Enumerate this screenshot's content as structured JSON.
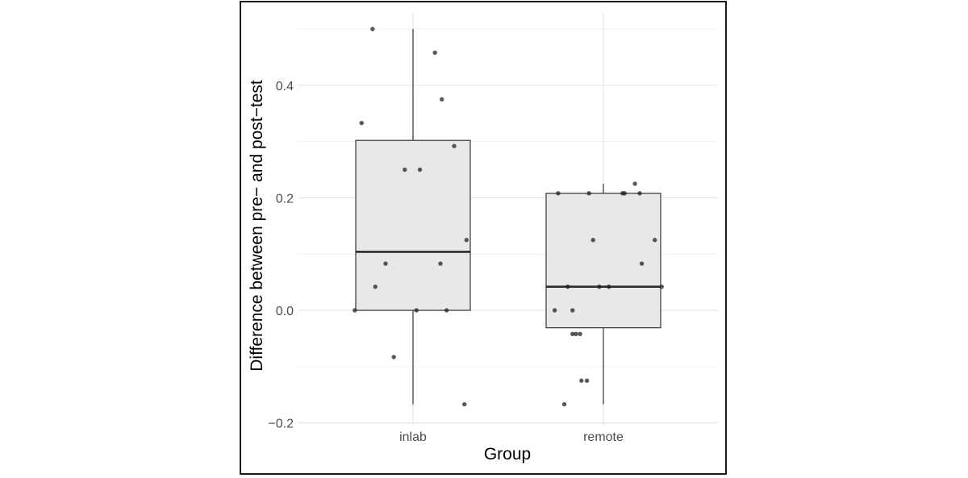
{
  "chart_data": {
    "type": "box",
    "xlabel": "Group",
    "ylabel": "Difference between pre− and post−test",
    "ylim": [
      -0.2,
      0.5
    ],
    "y_ticks": [
      -0.2,
      0.0,
      0.2,
      0.4
    ],
    "y_tick_labels": [
      "−0.2",
      "0.0",
      "0.2",
      "0.4"
    ],
    "grid": true,
    "categories": [
      "inlab",
      "remote"
    ],
    "boxes": [
      {
        "group": "inlab",
        "whisker_low": -0.167,
        "q1": 0.0,
        "median": 0.104,
        "q3": 0.302,
        "whisker_high": 0.5,
        "points": [
          {
            "jitter": -0.59,
            "y": 0.5
          },
          {
            "jitter": -0.75,
            "y": 0.333
          },
          {
            "jitter": 0.32,
            "y": 0.458
          },
          {
            "jitter": 0.42,
            "y": 0.375
          },
          {
            "jitter": 0.6,
            "y": 0.292
          },
          {
            "jitter": -0.12,
            "y": 0.25
          },
          {
            "jitter": 0.1,
            "y": 0.25
          },
          {
            "jitter": 0.78,
            "y": 0.125
          },
          {
            "jitter": -0.4,
            "y": 0.083
          },
          {
            "jitter": 0.4,
            "y": 0.083
          },
          {
            "jitter": -0.55,
            "y": 0.042
          },
          {
            "jitter": -0.85,
            "y": 0.0
          },
          {
            "jitter": 0.05,
            "y": 0.0
          },
          {
            "jitter": 0.49,
            "y": 0.0
          },
          {
            "jitter": -0.28,
            "y": -0.083
          },
          {
            "jitter": 0.75,
            "y": -0.167
          }
        ]
      },
      {
        "group": "remote",
        "whisker_low": -0.167,
        "q1": -0.031,
        "median": 0.042,
        "q3": 0.208,
        "whisker_high": 0.225,
        "points": [
          {
            "jitter": -0.66,
            "y": 0.208
          },
          {
            "jitter": -0.21,
            "y": 0.208
          },
          {
            "jitter": 0.28,
            "y": 0.208
          },
          {
            "jitter": 0.31,
            "y": 0.208
          },
          {
            "jitter": 0.53,
            "y": 0.208
          },
          {
            "jitter": 0.46,
            "y": 0.225
          },
          {
            "jitter": -0.15,
            "y": 0.125
          },
          {
            "jitter": 0.75,
            "y": 0.125
          },
          {
            "jitter": 0.56,
            "y": 0.083
          },
          {
            "jitter": -0.52,
            "y": 0.042
          },
          {
            "jitter": -0.06,
            "y": 0.042
          },
          {
            "jitter": 0.08,
            "y": 0.042
          },
          {
            "jitter": 0.85,
            "y": 0.042
          },
          {
            "jitter": -0.71,
            "y": 0.0
          },
          {
            "jitter": -0.45,
            "y": 0.0
          },
          {
            "jitter": -0.45,
            "y": -0.042
          },
          {
            "jitter": -0.4,
            "y": -0.042
          },
          {
            "jitter": -0.34,
            "y": -0.042
          },
          {
            "jitter": -0.32,
            "y": -0.125
          },
          {
            "jitter": -0.24,
            "y": -0.125
          },
          {
            "jitter": -0.57,
            "y": -0.167
          }
        ]
      }
    ]
  }
}
